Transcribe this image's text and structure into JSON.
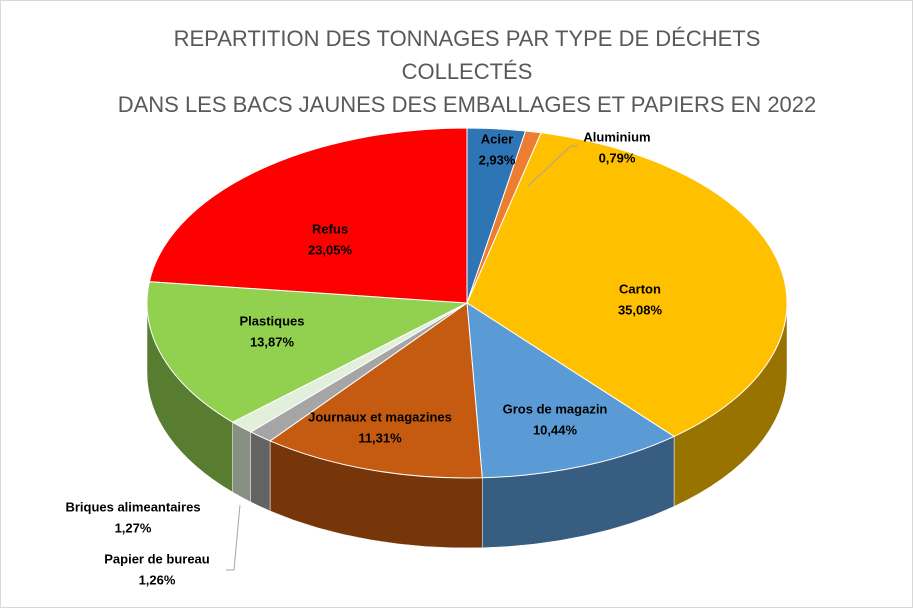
{
  "chart_data": {
    "type": "pie3d",
    "title": [
      "REPARTITION DES TONNAGES PAR TYPE DE DÉCHETS",
      "COLLECTÉS",
      "DANS LES BACS JAUNES DES EMBALLAGES ET PAPIERS EN 2022"
    ],
    "categories": [
      "Acier",
      "Aluminium",
      "Carton",
      "Gros de magazin",
      "Journaux et magazines",
      "Papier de bureau",
      "Briques alimeantaires",
      "Plastiques",
      "Refus"
    ],
    "values": [
      2.93,
      0.79,
      35.08,
      10.44,
      11.31,
      1.26,
      1.27,
      13.87,
      23.05
    ],
    "value_labels": [
      "2,93%",
      "0,79%",
      "35,08%",
      "10,44%",
      "11,31%",
      "1,26%",
      "1,27%",
      "13,87%",
      "23,05%"
    ],
    "colors": [
      "#2e75b6",
      "#ed7d31",
      "#ffc000",
      "#5b9bd5",
      "#c55a11",
      "#a5a5a5",
      "#e2efda",
      "#92d050",
      "#ff0000"
    ]
  }
}
